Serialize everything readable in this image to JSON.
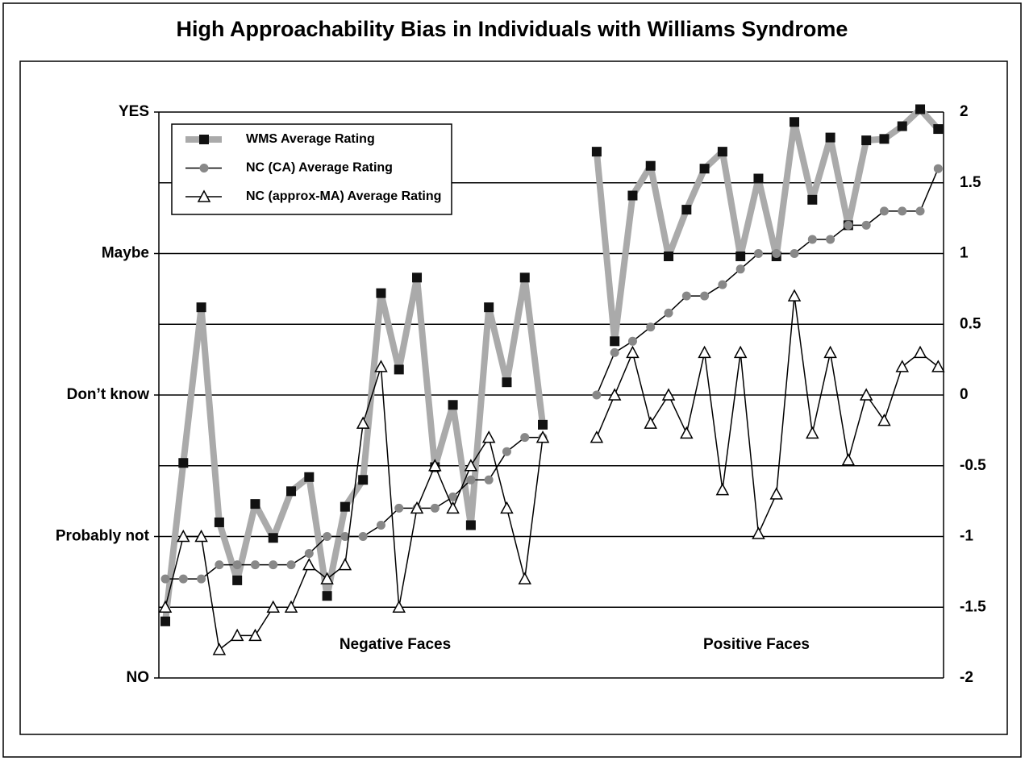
{
  "chart_data": {
    "type": "line",
    "title": "High Approachability Bias in Individuals with Williams Syndrome",
    "annotations": [
      "Negative Faces",
      "Positive Faces"
    ],
    "x": [
      1,
      2,
      3,
      4,
      5,
      6,
      7,
      8,
      9,
      10,
      11,
      12,
      13,
      14,
      15,
      16,
      17,
      18,
      19,
      20,
      21,
      22,
      23,
      24,
      25,
      26,
      27,
      28,
      29,
      30,
      31,
      32,
      33,
      34,
      35,
      36,
      37,
      38,
      39,
      40,
      41,
      42,
      43,
      44
    ],
    "xlim": [
      0.64,
      44.3
    ],
    "ylim": [
      -2,
      2
    ],
    "yticks": [
      {
        "value": 2,
        "label": "YES"
      },
      {
        "value": 1,
        "label": "Maybe"
      },
      {
        "value": 0,
        "label": "Don’t know"
      },
      {
        "value": -1,
        "label": "Probably not"
      },
      {
        "value": -2,
        "label": "NO"
      }
    ],
    "y2lim": [
      -2,
      2
    ],
    "y2ticks": [
      2,
      1.5,
      1,
      0.5,
      0,
      -0.5,
      -1,
      -1.5,
      -2
    ],
    "grid": true,
    "legend": "upper left",
    "series": [
      {
        "name": "WMS Average Rating",
        "color": "#aaaaaa",
        "marker": "square",
        "values": [
          -1.6,
          -0.48,
          0.62,
          -0.9,
          -1.31,
          -0.77,
          -1.01,
          -0.68,
          -0.58,
          -1.42,
          -0.79,
          -0.6,
          0.72,
          0.18,
          0.83,
          -0.51,
          -0.07,
          -0.92,
          0.62,
          0.09,
          0.83,
          -0.21,
          null,
          null,
          1.72,
          0.38,
          1.41,
          1.62,
          0.98,
          1.31,
          1.6,
          1.72,
          0.98,
          1.53,
          0.98,
          1.93,
          1.38,
          1.82,
          1.2,
          1.8,
          1.81,
          1.9,
          2.02,
          1.88
        ]
      },
      {
        "name": "NC (CA) Average Rating",
        "color": "#888888",
        "marker": "circle",
        "values": [
          -1.3,
          -1.3,
          -1.3,
          -1.2,
          -1.2,
          -1.2,
          -1.2,
          -1.2,
          -1.12,
          -1.0,
          -1.0,
          -1.0,
          -0.92,
          -0.8,
          -0.8,
          -0.8,
          -0.72,
          -0.6,
          -0.6,
          -0.4,
          -0.3,
          -0.3,
          null,
          null,
          0,
          0.3,
          0.38,
          0.48,
          0.58,
          0.7,
          0.7,
          0.78,
          0.89,
          1.0,
          1.0,
          1.0,
          1.1,
          1.1,
          1.2,
          1.2,
          1.3,
          1.3,
          1.3,
          1.6
        ]
      },
      {
        "name": "NC (approx-MA) Average Rating",
        "color": "#ffffff",
        "marker": "triangle",
        "values": [
          -1.5,
          -1.0,
          -1.0,
          -1.8,
          -1.7,
          -1.7,
          -1.5,
          -1.5,
          -1.2,
          -1.3,
          -1.2,
          -0.2,
          0.2,
          -1.5,
          -0.8,
          -0.5,
          -0.8,
          -0.5,
          -0.3,
          -0.8,
          -1.3,
          -0.3,
          null,
          null,
          -0.3,
          0,
          0.3,
          -0.2,
          0,
          -0.27,
          0.3,
          -0.67,
          0.3,
          -0.98,
          -0.7,
          0.7,
          -0.27,
          0.3,
          -0.46,
          0,
          -0.18,
          0.2,
          0.3,
          0.2
        ]
      }
    ]
  }
}
